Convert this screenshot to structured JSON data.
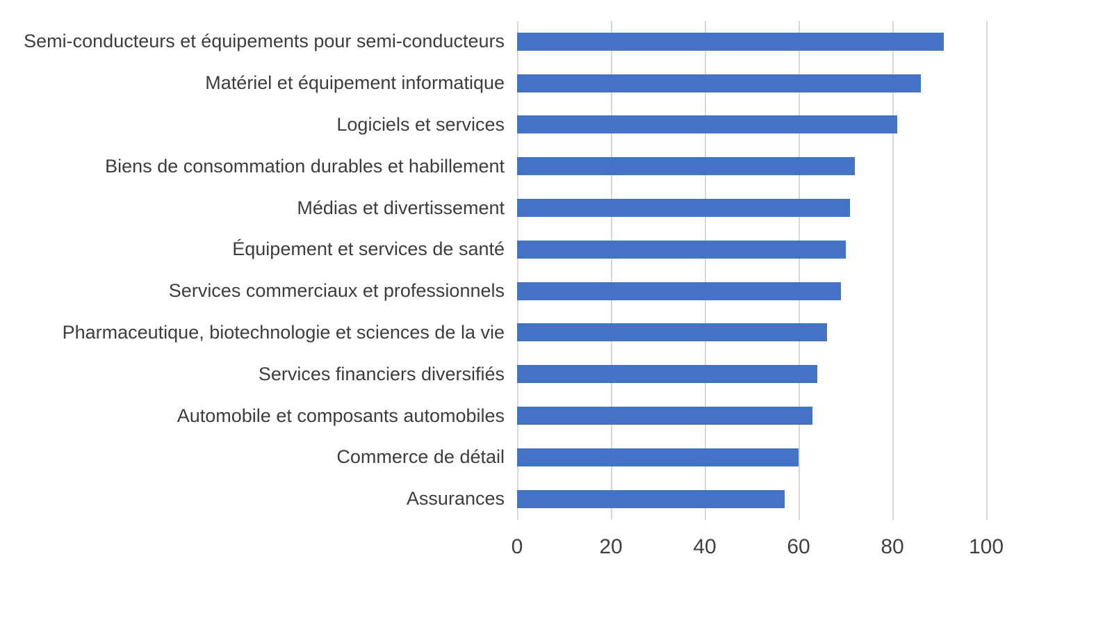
{
  "chart_data": {
    "type": "bar",
    "orientation": "horizontal",
    "title": "",
    "xlabel": "",
    "ylabel": "",
    "categories": [
      "Semi-conducteurs et équipements pour semi-conducteurs",
      "Matériel et équipement informatique",
      "Logiciels et services",
      "Biens de consommation durables et habillement",
      "Médias et divertissement",
      "Équipement et services de santé",
      "Services commerciaux et professionnels",
      "Pharmaceutique, biotechnologie et sciences de la vie",
      "Services financiers diversifiés",
      "Automobile et composants automobiles",
      "Commerce de détail",
      "Assurances"
    ],
    "values": [
      91,
      86,
      81,
      72,
      71,
      70,
      69,
      66,
      64,
      63,
      60,
      57
    ],
    "x_ticks": [
      0,
      20,
      40,
      60,
      80,
      100
    ],
    "xlim": [
      0,
      112
    ],
    "grid": "vertical",
    "legend": "none",
    "bar_color": "#4472c4",
    "gridline_color": "#d8d8d8",
    "label_color": "#3d3d3d"
  }
}
